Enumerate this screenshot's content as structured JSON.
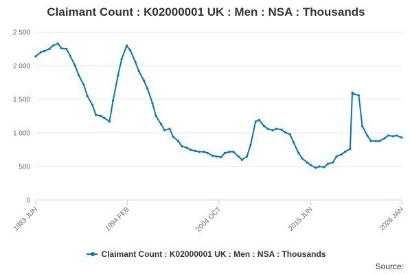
{
  "title": "Claimant Count : K02000001 UK : Men : NSA : Thousands",
  "source_label": "Source:",
  "colors": {
    "series": "#0077b5",
    "grid": "#e6e6e6",
    "axis": "#ccd6eb",
    "text": "#333333",
    "tick_text": "#666666"
  },
  "chart_data": {
    "type": "line",
    "title": "Claimant Count : K02000001 UK : Men : NSA : Thousands",
    "xlabel": "",
    "ylabel": "",
    "ylim": [
      0,
      2500
    ],
    "yticks": [
      0,
      500,
      1000,
      1500,
      2000,
      2500
    ],
    "ytick_labels": [
      "0",
      "500",
      "1 000",
      "1 500",
      "2 000",
      "2 500"
    ],
    "x_range": [
      "1983-06",
      "2026-01"
    ],
    "xtick_labels": [
      "1983 JUN",
      "1994 FEB",
      "2004 OCT",
      "2015 JUN",
      "2026 JAN"
    ],
    "xtick_dates": [
      "1983-06",
      "1994-02",
      "2004-10",
      "2015-06",
      "2026-01"
    ],
    "grid": "horizontal",
    "legend_position": "bottom-center",
    "series": [
      {
        "name": "Claimant Count : K02000001 UK : Men : NSA : Thousands",
        "x": [
          "1983-06",
          "1984-01",
          "1984-06",
          "1985-01",
          "1985-06",
          "1986-01",
          "1986-06",
          "1987-01",
          "1987-06",
          "1988-01",
          "1988-06",
          "1989-01",
          "1989-06",
          "1990-01",
          "1990-06",
          "1991-01",
          "1991-06",
          "1992-01",
          "1992-06",
          "1993-01",
          "1993-06",
          "1994-01",
          "1994-06",
          "1995-01",
          "1995-06",
          "1996-01",
          "1996-06",
          "1997-01",
          "1997-06",
          "1998-01",
          "1998-06",
          "1999-01",
          "1999-06",
          "2000-01",
          "2000-06",
          "2001-01",
          "2001-06",
          "2002-01",
          "2002-06",
          "2003-01",
          "2003-06",
          "2004-01",
          "2004-06",
          "2005-01",
          "2005-06",
          "2006-01",
          "2006-06",
          "2007-01",
          "2007-06",
          "2008-01",
          "2008-06",
          "2009-01",
          "2009-06",
          "2010-01",
          "2010-06",
          "2011-01",
          "2011-06",
          "2012-01",
          "2012-06",
          "2013-01",
          "2013-06",
          "2014-01",
          "2014-06",
          "2015-01",
          "2015-06",
          "2016-01",
          "2016-06",
          "2017-01",
          "2017-06",
          "2018-01",
          "2018-06",
          "2019-01",
          "2019-06",
          "2020-01",
          "2020-04",
          "2020-06",
          "2021-01",
          "2021-06",
          "2022-01",
          "2022-06",
          "2023-01",
          "2023-06",
          "2024-01",
          "2024-06",
          "2025-01",
          "2025-06",
          "2026-01"
        ],
        "values": [
          2140,
          2200,
          2220,
          2250,
          2300,
          2330,
          2260,
          2250,
          2150,
          2000,
          1860,
          1720,
          1550,
          1420,
          1270,
          1250,
          1220,
          1170,
          1480,
          1860,
          2100,
          2300,
          2230,
          2060,
          1920,
          1780,
          1660,
          1440,
          1250,
          1130,
          1040,
          1060,
          940,
          880,
          800,
          780,
          750,
          730,
          720,
          720,
          700,
          660,
          650,
          640,
          700,
          720,
          720,
          650,
          600,
          650,
          820,
          1170,
          1190,
          1100,
          1060,
          1040,
          1060,
          1050,
          1010,
          980,
          860,
          700,
          620,
          560,
          520,
          480,
          500,
          490,
          540,
          560,
          650,
          680,
          720,
          760,
          1600,
          1580,
          1560,
          1100,
          960,
          880,
          880,
          880,
          920,
          960,
          950,
          960,
          930
        ]
      }
    ]
  }
}
